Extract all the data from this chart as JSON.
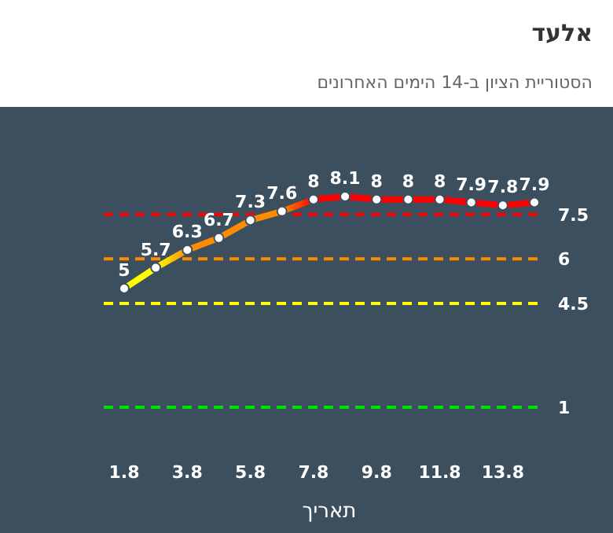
{
  "chart_data": {
    "type": "line",
    "title": "אלעד",
    "subtitle": "הסטוריית הציון ב-14 הימים האחרונים",
    "xlabel": "תאריך",
    "categories": [
      "1.8",
      null,
      "3.8",
      null,
      "5.8",
      null,
      "7.8",
      null,
      "9.8",
      null,
      "11.8",
      null,
      "13.8",
      null
    ],
    "series": [
      {
        "values": [
          5,
          5.7,
          6.3,
          6.7,
          7.3,
          7.6,
          8,
          8.1,
          8,
          8,
          8,
          7.9,
          7.8,
          7.9
        ],
        "colors": [
          "#ffff00",
          "#ffff00",
          "#ff8c00",
          "#ff8c00",
          "#ff8c00",
          "#ff8c00",
          "#ff0000",
          "#ff0000",
          "#ff0000",
          "#ff0000",
          "#ff0000",
          "#ff0000",
          "#ff0000",
          "#ff0000"
        ]
      }
    ],
    "ref_lines": [
      {
        "axis": "y",
        "value": 7.5,
        "label": "7.5",
        "color": "#ff0000",
        "line_style": "dashed"
      },
      {
        "axis": "y",
        "value": 6,
        "label": "6",
        "color": "#ff8c00",
        "line_style": "dashed"
      },
      {
        "axis": "y",
        "value": 4.5,
        "label": "4.5",
        "color": "#ffff00",
        "line_style": "dashed"
      },
      {
        "axis": "y",
        "value": 1,
        "label": "1",
        "color": "#00e000",
        "line_style": "dashed"
      }
    ],
    "data_labels": true,
    "marker": "circle"
  }
}
